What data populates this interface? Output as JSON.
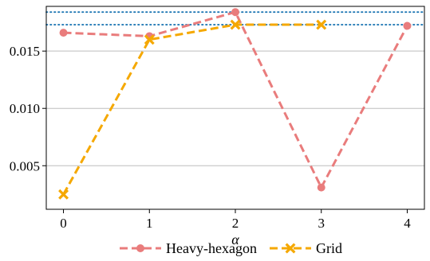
{
  "chart_data": {
    "type": "line",
    "x": [
      0,
      1,
      2,
      3,
      4
    ],
    "xlabel": "α",
    "ylabel": "",
    "xlim": [
      -0.2,
      4.2
    ],
    "ylim": [
      0.0012,
      0.0189
    ],
    "yticks": [
      "0.005",
      "0.010",
      "0.015"
    ],
    "ytick_values": [
      0.005,
      0.01,
      0.015
    ],
    "xticks": [
      "0",
      "1",
      "2",
      "3",
      "4"
    ],
    "grid": "horizontal",
    "legend": "bottom",
    "series": [
      {
        "name": "Heavy-hexagon",
        "marker": "circle",
        "color": "#e97c7c",
        "values": [
          0.0166,
          0.0163,
          0.0184,
          0.0031,
          0.0172
        ]
      },
      {
        "name": "Grid",
        "marker": "x",
        "color": "#f5a800",
        "values": [
          0.0025,
          0.016,
          0.0173,
          0.0173,
          null
        ]
      }
    ],
    "reference_lines": [
      {
        "value": 0.0184,
        "color": "#1f77b4",
        "style": "dotted"
      },
      {
        "value": 0.0173,
        "color": "#1f77b4",
        "style": "dotted"
      }
    ]
  }
}
